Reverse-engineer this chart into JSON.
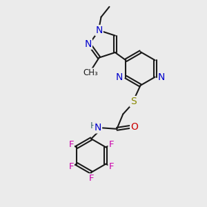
{
  "bg_color": "#ebebeb",
  "bond_color": "#1a1a1a",
  "N_color": "#0000cc",
  "S_color": "#888800",
  "O_color": "#cc0000",
  "F_color": "#cc00aa",
  "line_width": 1.5,
  "font_size": 9.5,
  "figsize": [
    3.0,
    3.0
  ],
  "dpi": 100,
  "xlim": [
    0,
    10
  ],
  "ylim": [
    0,
    10
  ]
}
